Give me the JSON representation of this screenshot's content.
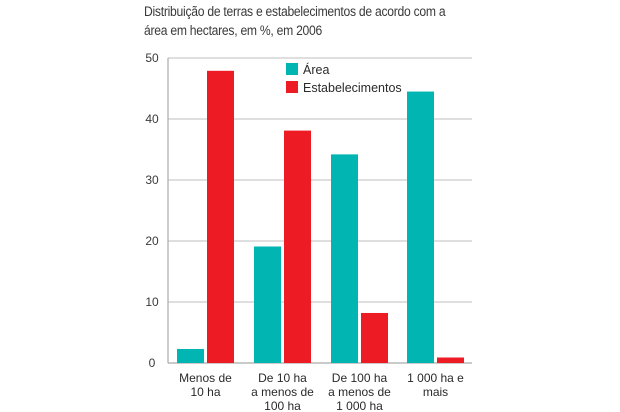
{
  "chart_data": {
    "type": "bar",
    "title": "Distribuição de terras e estabelecimentos de acordo com a área em hectares, em %, em 2006",
    "title_lines": [
      "Distribuição de terras e estabelecimentos de acordo com a",
      "área em hectares, em %, em 2006"
    ],
    "xlabel": "",
    "ylabel": "",
    "ylim": [
      0,
      50
    ],
    "yticks": [
      0,
      10,
      20,
      30,
      40,
      50
    ],
    "grid": true,
    "legend_position": "top-center",
    "categories": [
      [
        "Menos de",
        "10 ha"
      ],
      [
        "De 10 ha",
        "a menos de",
        "100 ha"
      ],
      [
        "De 100 ha",
        "a menos de",
        "1 000 ha"
      ],
      [
        "1 000 ha e",
        "mais"
      ]
    ],
    "series": [
      {
        "name": "Área",
        "color": "#00b5b2",
        "values": [
          2.3,
          19.1,
          34.2,
          44.5
        ]
      },
      {
        "name": "Estabelecimentos",
        "color": "#ed1c24",
        "values": [
          47.9,
          38.1,
          8.2,
          0.9
        ]
      }
    ]
  },
  "colors": {
    "grid": "#cccccc",
    "axis": "#aaaaaa"
  }
}
